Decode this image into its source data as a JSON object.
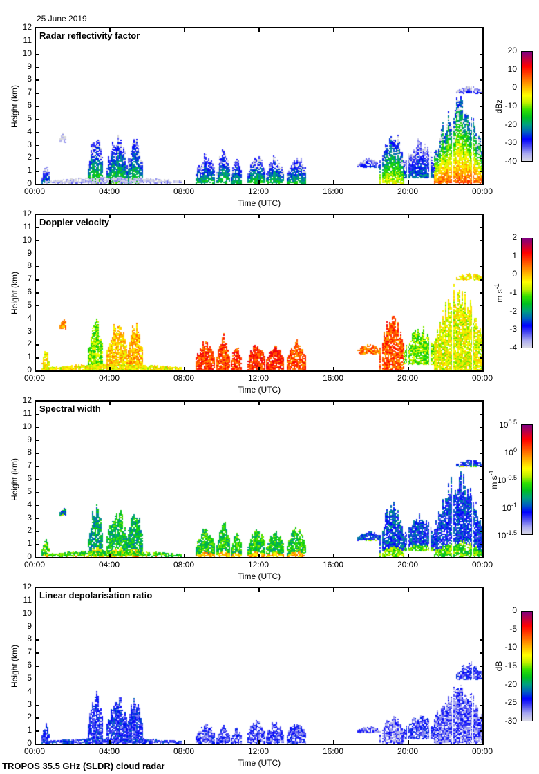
{
  "date_label": "25 June 2019",
  "footer": "TROPOS 35.5 GHz (SLDR) cloud radar",
  "colors": {
    "colormap": [
      "#d8d8e6",
      "#a8a8f0",
      "#5050f0",
      "#0000ff",
      "#0060c0",
      "#00a080",
      "#00c020",
      "#30e000",
      "#c0f000",
      "#ffff00",
      "#ffc000",
      "#ff8000",
      "#ff4000",
      "#ff0000",
      "#c00040",
      "#800080"
    ],
    "gray_weak_echo": "#d9d9d9"
  },
  "chart_data": [
    {
      "type": "heatmap",
      "title": "Radar reflectivity factor",
      "xlabel": "Time (UTC)",
      "ylabel": "Height (km)",
      "x_ticks": [
        "00:00",
        "04:00",
        "08:00",
        "12:00",
        "16:00",
        "20:00",
        "00:00"
      ],
      "x_range_hours": [
        0,
        24
      ],
      "y_ticks": [
        "0",
        "1",
        "2",
        "3",
        "4",
        "5",
        "6",
        "7",
        "8",
        "9",
        "10",
        "11",
        "12"
      ],
      "y_range_km": [
        0,
        12
      ],
      "colorbar": {
        "label": "dBz",
        "ticks": [
          "20",
          "10",
          "0",
          "-10",
          "-20",
          "-30",
          "-40"
        ],
        "range": [
          -40,
          20
        ]
      },
      "clouds": [
        {
          "t0": 0.3,
          "t1": 0.7,
          "h0": 0.1,
          "h1": 1.6,
          "v": 0.25
        },
        {
          "t0": 1.3,
          "t1": 1.6,
          "h0": 3.2,
          "h1": 4.0,
          "v": 0.05
        },
        {
          "t0": 2.8,
          "t1": 3.6,
          "h0": 0.1,
          "h1": 4.2,
          "v": 0.35
        },
        {
          "t0": 3.8,
          "t1": 4.9,
          "h0": 0.1,
          "h1": 4.0,
          "v": 0.35
        },
        {
          "t0": 4.9,
          "t1": 5.7,
          "h0": 0.1,
          "h1": 3.8,
          "v": 0.33
        },
        {
          "t0": 0.5,
          "t1": 7.8,
          "h0": 0.1,
          "h1": 0.5,
          "v": 0.05
        },
        {
          "t0": 8.6,
          "t1": 9.6,
          "h0": 0.1,
          "h1": 2.4,
          "v": 0.3
        },
        {
          "t0": 9.7,
          "t1": 10.4,
          "h0": 0.1,
          "h1": 3.0,
          "v": 0.32
        },
        {
          "t0": 10.5,
          "t1": 11.0,
          "h0": 0.1,
          "h1": 2.1,
          "v": 0.3
        },
        {
          "t0": 11.4,
          "t1": 12.3,
          "h0": 0.1,
          "h1": 2.4,
          "v": 0.33
        },
        {
          "t0": 12.4,
          "t1": 13.3,
          "h0": 0.1,
          "h1": 2.2,
          "v": 0.32
        },
        {
          "t0": 13.5,
          "t1": 14.5,
          "h0": 0.1,
          "h1": 2.4,
          "v": 0.3
        },
        {
          "t0": 17.3,
          "t1": 18.5,
          "h0": 1.3,
          "h1": 2.0,
          "v": 0.2
        },
        {
          "t0": 18.5,
          "t1": 19.8,
          "h0": 0.1,
          "h1": 4.5,
          "v": 0.45
        },
        {
          "t0": 19.8,
          "t1": 21.4,
          "h0": 0.5,
          "h1": 3.5,
          "v": 0.22
        },
        {
          "t0": 21.4,
          "t1": 24.0,
          "h0": 0.1,
          "h1": 6.8,
          "v": 0.6
        },
        {
          "t0": 22.6,
          "t1": 24.0,
          "h0": 7.0,
          "h1": 7.5,
          "v": 0.15
        }
      ]
    },
    {
      "type": "heatmap",
      "title": "Doppler velocity",
      "xlabel": "Time (UTC)",
      "ylabel": "Height (km)",
      "x_ticks": [
        "00:00",
        "04:00",
        "08:00",
        "12:00",
        "16:00",
        "20:00",
        "00:00"
      ],
      "x_range_hours": [
        0,
        24
      ],
      "y_ticks": [
        "0",
        "1",
        "2",
        "3",
        "4",
        "5",
        "6",
        "7",
        "8",
        "9",
        "10",
        "11",
        "12"
      ],
      "y_range_km": [
        0,
        12
      ],
      "colorbar": {
        "label": "m s-1",
        "ticks": [
          "2",
          "1",
          "0",
          "-1",
          "-2",
          "-3",
          "-4"
        ],
        "range": [
          -4,
          2
        ]
      },
      "clouds": [
        {
          "t0": 0.3,
          "t1": 0.7,
          "h0": 0.1,
          "h1": 1.6,
          "v": 0.6
        },
        {
          "t0": 1.3,
          "t1": 1.6,
          "h0": 3.2,
          "h1": 4.0,
          "v": 0.7
        },
        {
          "t0": 2.8,
          "t1": 3.6,
          "h0": 0.1,
          "h1": 4.2,
          "v": 0.5
        },
        {
          "t0": 3.8,
          "t1": 4.9,
          "h0": 0.1,
          "h1": 4.0,
          "v": 0.65
        },
        {
          "t0": 4.9,
          "t1": 5.7,
          "h0": 0.1,
          "h1": 3.8,
          "v": 0.68
        },
        {
          "t0": 0.5,
          "t1": 7.8,
          "h0": 0.1,
          "h1": 0.5,
          "v": 0.6
        },
        {
          "t0": 8.6,
          "t1": 9.6,
          "h0": 0.1,
          "h1": 2.4,
          "v": 0.8
        },
        {
          "t0": 9.7,
          "t1": 10.4,
          "h0": 0.1,
          "h1": 3.0,
          "v": 0.8
        },
        {
          "t0": 10.5,
          "t1": 11.0,
          "h0": 0.1,
          "h1": 2.1,
          "v": 0.8
        },
        {
          "t0": 11.4,
          "t1": 12.3,
          "h0": 0.1,
          "h1": 2.4,
          "v": 0.82
        },
        {
          "t0": 12.4,
          "t1": 13.3,
          "h0": 0.1,
          "h1": 2.2,
          "v": 0.82
        },
        {
          "t0": 13.5,
          "t1": 14.5,
          "h0": 0.1,
          "h1": 2.4,
          "v": 0.78
        },
        {
          "t0": 17.3,
          "t1": 18.5,
          "h0": 1.3,
          "h1": 2.0,
          "v": 0.75
        },
        {
          "t0": 18.5,
          "t1": 19.8,
          "h0": 0.1,
          "h1": 4.5,
          "v": 0.78
        },
        {
          "t0": 19.8,
          "t1": 21.4,
          "h0": 0.5,
          "h1": 3.5,
          "v": 0.5
        },
        {
          "t0": 21.4,
          "t1": 24.0,
          "h0": 0.1,
          "h1": 6.8,
          "v": 0.58
        },
        {
          "t0": 22.6,
          "t1": 24.0,
          "h0": 7.0,
          "h1": 7.5,
          "v": 0.6
        }
      ]
    },
    {
      "type": "heatmap",
      "title": "Spectral width",
      "xlabel": "Time (UTC)",
      "ylabel": "Height (km)",
      "x_ticks": [
        "00:00",
        "04:00",
        "08:00",
        "12:00",
        "16:00",
        "20:00",
        "00:00"
      ],
      "x_range_hours": [
        0,
        24
      ],
      "y_ticks": [
        "0",
        "1",
        "2",
        "3",
        "4",
        "5",
        "6",
        "7",
        "8",
        "9",
        "10",
        "11",
        "12"
      ],
      "y_range_km": [
        0,
        12
      ],
      "colorbar": {
        "label": "m s-1",
        "ticks": [
          "10^0.5",
          "10^0",
          "10^-0.5",
          "10^-1",
          "10^-1.5"
        ],
        "range_log10": [
          -1.5,
          0.5
        ]
      },
      "clouds": [
        {
          "t0": 0.3,
          "t1": 0.7,
          "h0": 0.1,
          "h1": 1.6,
          "v": 0.45
        },
        {
          "t0": 1.3,
          "t1": 1.6,
          "h0": 3.2,
          "h1": 4.0,
          "v": 0.3
        },
        {
          "t0": 2.8,
          "t1": 3.6,
          "h0": 0.1,
          "h1": 4.2,
          "v": 0.35
        },
        {
          "t0": 3.8,
          "t1": 4.9,
          "h0": 0.1,
          "h1": 4.0,
          "v": 0.4
        },
        {
          "t0": 4.9,
          "t1": 5.7,
          "h0": 0.1,
          "h1": 3.8,
          "v": 0.38
        },
        {
          "t0": 0.5,
          "t1": 7.8,
          "h0": 0.1,
          "h1": 0.5,
          "v": 0.45
        },
        {
          "t0": 8.6,
          "t1": 9.6,
          "h0": 0.1,
          "h1": 2.4,
          "v": 0.42
        },
        {
          "t0": 9.7,
          "t1": 10.4,
          "h0": 0.1,
          "h1": 3.0,
          "v": 0.42
        },
        {
          "t0": 10.5,
          "t1": 11.0,
          "h0": 0.1,
          "h1": 2.1,
          "v": 0.42
        },
        {
          "t0": 11.4,
          "t1": 12.3,
          "h0": 0.1,
          "h1": 2.4,
          "v": 0.42
        },
        {
          "t0": 12.4,
          "t1": 13.3,
          "h0": 0.1,
          "h1": 2.2,
          "v": 0.42
        },
        {
          "t0": 13.5,
          "t1": 14.5,
          "h0": 0.1,
          "h1": 2.4,
          "v": 0.42
        },
        {
          "t0": 17.3,
          "t1": 18.5,
          "h0": 1.3,
          "h1": 2.0,
          "v": 0.22
        },
        {
          "t0": 18.5,
          "t1": 19.8,
          "h0": 0.1,
          "h1": 4.5,
          "v": 0.25
        },
        {
          "t0": 19.8,
          "t1": 21.4,
          "h0": 0.5,
          "h1": 3.5,
          "v": 0.22
        },
        {
          "t0": 21.4,
          "t1": 24.0,
          "h0": 0.1,
          "h1": 6.8,
          "v": 0.22
        },
        {
          "t0": 22.6,
          "t1": 24.0,
          "h0": 7.0,
          "h1": 7.5,
          "v": 0.22
        }
      ]
    },
    {
      "type": "heatmap",
      "title": "Linear depolarisation ratio",
      "xlabel": "Time (UTC)",
      "ylabel": "Height (km)",
      "x_ticks": [
        "00:00",
        "04:00",
        "08:00",
        "12:00",
        "16:00",
        "20:00",
        "00:00"
      ],
      "x_range_hours": [
        0,
        24
      ],
      "y_ticks": [
        "0",
        "1",
        "2",
        "3",
        "4",
        "5",
        "6",
        "7",
        "8",
        "9",
        "10",
        "11",
        "12"
      ],
      "y_range_km": [
        0,
        12
      ],
      "colorbar": {
        "label": "dB",
        "ticks": [
          "0",
          "-5",
          "-10",
          "-15",
          "-20",
          "-25",
          "-30"
        ],
        "range": [
          -30,
          0
        ]
      },
      "clouds": [
        {
          "t0": 0.3,
          "t1": 0.7,
          "h0": 0.1,
          "h1": 1.6,
          "v": 0.18
        },
        {
          "t0": 2.8,
          "t1": 3.6,
          "h0": 0.1,
          "h1": 4.2,
          "v": 0.18
        },
        {
          "t0": 3.8,
          "t1": 4.9,
          "h0": 0.1,
          "h1": 3.8,
          "v": 0.18
        },
        {
          "t0": 4.9,
          "t1": 5.7,
          "h0": 0.1,
          "h1": 3.8,
          "v": 0.18
        },
        {
          "t0": 0.5,
          "t1": 7.8,
          "h0": 0.1,
          "h1": 0.4,
          "v": 0.18
        },
        {
          "t0": 8.6,
          "t1": 9.6,
          "h0": 0.1,
          "h1": 1.6,
          "v": 0.14
        },
        {
          "t0": 9.7,
          "t1": 10.4,
          "h0": 0.1,
          "h1": 1.5,
          "v": 0.14
        },
        {
          "t0": 10.5,
          "t1": 11.0,
          "h0": 0.1,
          "h1": 1.2,
          "v": 0.14
        },
        {
          "t0": 11.4,
          "t1": 12.3,
          "h0": 0.1,
          "h1": 2.0,
          "v": 0.14
        },
        {
          "t0": 12.4,
          "t1": 13.3,
          "h0": 0.1,
          "h1": 1.8,
          "v": 0.14
        },
        {
          "t0": 13.5,
          "t1": 14.5,
          "h0": 0.1,
          "h1": 1.9,
          "v": 0.14
        },
        {
          "t0": 17.3,
          "t1": 18.5,
          "h0": 0.9,
          "h1": 1.3,
          "v": 0.1
        },
        {
          "t0": 18.5,
          "t1": 19.8,
          "h0": 0.1,
          "h1": 2.2,
          "v": 0.1
        },
        {
          "t0": 19.8,
          "t1": 21.4,
          "h0": 0.4,
          "h1": 2.3,
          "v": 0.15
        },
        {
          "t0": 21.4,
          "t1": 24.0,
          "h0": 0.1,
          "h1": 5.0,
          "v": 0.12
        },
        {
          "t0": 22.6,
          "t1": 24.0,
          "h0": 5.0,
          "h1": 6.3,
          "v": 0.15
        }
      ]
    }
  ]
}
